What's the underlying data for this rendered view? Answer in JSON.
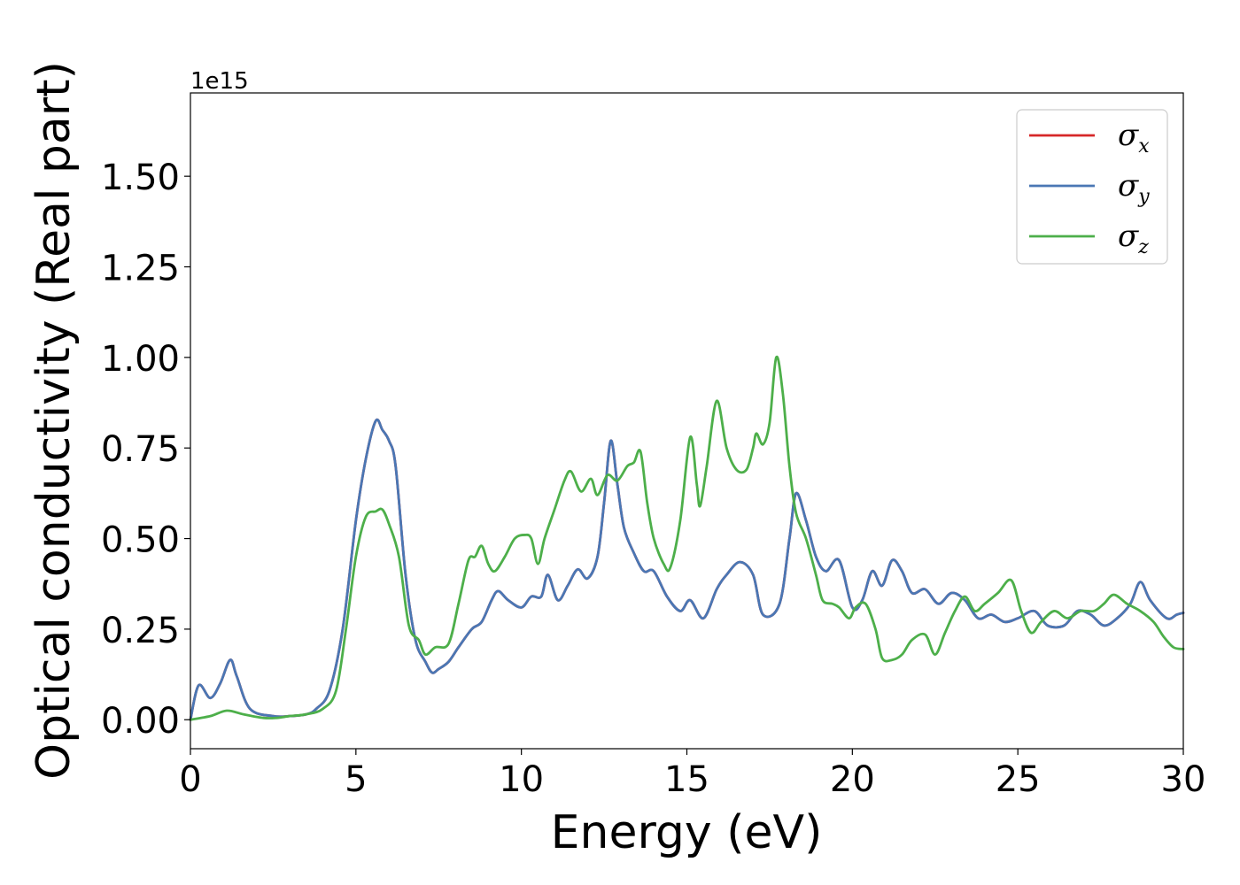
{
  "chart_data": {
    "type": "line",
    "xlabel": "Energy (eV)",
    "ylabel": "Optical conductivity (Real part)",
    "y_offset_label": "1e15",
    "xlim": [
      0,
      30
    ],
    "ylim": [
      -0.08,
      1.73
    ],
    "xticks": [
      0,
      5,
      10,
      15,
      20,
      25,
      30
    ],
    "xtick_labels": [
      "0",
      "5",
      "10",
      "15",
      "20",
      "25",
      "30"
    ],
    "yticks": [
      0.0,
      0.25,
      0.5,
      0.75,
      1.0,
      1.25,
      1.5
    ],
    "ytick_labels": [
      "0.00",
      "0.25",
      "0.50",
      "0.75",
      "1.00",
      "1.25",
      "1.50"
    ],
    "grid": false,
    "legend_position": "top-right",
    "series": [
      {
        "name": "σx",
        "symbol": "σ",
        "subscript": "x",
        "color": "#d62728",
        "points": [
          [
            0,
            0.0
          ],
          [
            0.25,
            0.095
          ],
          [
            0.6,
            0.06
          ],
          [
            0.9,
            0.1
          ],
          [
            1.2,
            0.165
          ],
          [
            1.4,
            0.12
          ],
          [
            1.8,
            0.03
          ],
          [
            2.5,
            0.01
          ],
          [
            3.0,
            0.01
          ],
          [
            3.5,
            0.015
          ],
          [
            3.8,
            0.03
          ],
          [
            4.2,
            0.08
          ],
          [
            4.6,
            0.25
          ],
          [
            5.0,
            0.55
          ],
          [
            5.3,
            0.72
          ],
          [
            5.6,
            0.825
          ],
          [
            5.8,
            0.8
          ],
          [
            6.0,
            0.77
          ],
          [
            6.2,
            0.7
          ],
          [
            6.5,
            0.4
          ],
          [
            6.8,
            0.22
          ],
          [
            7.1,
            0.16
          ],
          [
            7.3,
            0.13
          ],
          [
            7.5,
            0.14
          ],
          [
            7.8,
            0.16
          ],
          [
            8.1,
            0.2
          ],
          [
            8.5,
            0.25
          ],
          [
            8.8,
            0.27
          ],
          [
            9.1,
            0.33
          ],
          [
            9.3,
            0.355
          ],
          [
            9.6,
            0.33
          ],
          [
            10.0,
            0.31
          ],
          [
            10.3,
            0.34
          ],
          [
            10.6,
            0.34
          ],
          [
            10.8,
            0.4
          ],
          [
            11.1,
            0.33
          ],
          [
            11.4,
            0.37
          ],
          [
            11.7,
            0.415
          ],
          [
            12.0,
            0.39
          ],
          [
            12.3,
            0.45
          ],
          [
            12.5,
            0.6
          ],
          [
            12.7,
            0.77
          ],
          [
            12.9,
            0.65
          ],
          [
            13.1,
            0.53
          ],
          [
            13.4,
            0.46
          ],
          [
            13.7,
            0.41
          ],
          [
            14.0,
            0.41
          ],
          [
            14.4,
            0.34
          ],
          [
            14.8,
            0.3
          ],
          [
            15.1,
            0.33
          ],
          [
            15.5,
            0.28
          ],
          [
            15.9,
            0.36
          ],
          [
            16.2,
            0.4
          ],
          [
            16.6,
            0.435
          ],
          [
            17.0,
            0.4
          ],
          [
            17.3,
            0.29
          ],
          [
            17.8,
            0.32
          ],
          [
            18.1,
            0.5
          ],
          [
            18.3,
            0.625
          ],
          [
            18.6,
            0.55
          ],
          [
            18.9,
            0.45
          ],
          [
            19.2,
            0.41
          ],
          [
            19.6,
            0.44
          ],
          [
            20.0,
            0.31
          ],
          [
            20.3,
            0.33
          ],
          [
            20.6,
            0.41
          ],
          [
            20.9,
            0.37
          ],
          [
            21.2,
            0.44
          ],
          [
            21.5,
            0.41
          ],
          [
            21.8,
            0.35
          ],
          [
            22.2,
            0.36
          ],
          [
            22.6,
            0.32
          ],
          [
            23.0,
            0.35
          ],
          [
            23.4,
            0.33
          ],
          [
            23.8,
            0.28
          ],
          [
            24.2,
            0.29
          ],
          [
            24.6,
            0.27
          ],
          [
            25.0,
            0.28
          ],
          [
            25.5,
            0.3
          ],
          [
            25.9,
            0.26
          ],
          [
            26.4,
            0.26
          ],
          [
            26.8,
            0.3
          ],
          [
            27.2,
            0.29
          ],
          [
            27.6,
            0.26
          ],
          [
            28.0,
            0.28
          ],
          [
            28.4,
            0.32
          ],
          [
            28.7,
            0.38
          ],
          [
            29.0,
            0.33
          ],
          [
            29.5,
            0.28
          ],
          [
            29.8,
            0.29
          ],
          [
            30,
            0.295
          ]
        ]
      },
      {
        "name": "σy",
        "symbol": "σ",
        "subscript": "y",
        "color": "#4a77b4",
        "points": [
          [
            0,
            0.0
          ],
          [
            0.25,
            0.095
          ],
          [
            0.6,
            0.06
          ],
          [
            0.9,
            0.1
          ],
          [
            1.2,
            0.165
          ],
          [
            1.4,
            0.12
          ],
          [
            1.8,
            0.03
          ],
          [
            2.5,
            0.01
          ],
          [
            3.0,
            0.01
          ],
          [
            3.5,
            0.015
          ],
          [
            3.8,
            0.03
          ],
          [
            4.2,
            0.08
          ],
          [
            4.6,
            0.25
          ],
          [
            5.0,
            0.55
          ],
          [
            5.3,
            0.72
          ],
          [
            5.6,
            0.825
          ],
          [
            5.8,
            0.8
          ],
          [
            6.0,
            0.77
          ],
          [
            6.2,
            0.7
          ],
          [
            6.5,
            0.4
          ],
          [
            6.8,
            0.22
          ],
          [
            7.1,
            0.16
          ],
          [
            7.3,
            0.13
          ],
          [
            7.5,
            0.14
          ],
          [
            7.8,
            0.16
          ],
          [
            8.1,
            0.2
          ],
          [
            8.5,
            0.25
          ],
          [
            8.8,
            0.27
          ],
          [
            9.1,
            0.33
          ],
          [
            9.3,
            0.355
          ],
          [
            9.6,
            0.33
          ],
          [
            10.0,
            0.31
          ],
          [
            10.3,
            0.34
          ],
          [
            10.6,
            0.34
          ],
          [
            10.8,
            0.4
          ],
          [
            11.1,
            0.33
          ],
          [
            11.4,
            0.37
          ],
          [
            11.7,
            0.415
          ],
          [
            12.0,
            0.39
          ],
          [
            12.3,
            0.45
          ],
          [
            12.5,
            0.6
          ],
          [
            12.7,
            0.77
          ],
          [
            12.9,
            0.65
          ],
          [
            13.1,
            0.53
          ],
          [
            13.4,
            0.46
          ],
          [
            13.7,
            0.41
          ],
          [
            14.0,
            0.41
          ],
          [
            14.4,
            0.34
          ],
          [
            14.8,
            0.3
          ],
          [
            15.1,
            0.33
          ],
          [
            15.5,
            0.28
          ],
          [
            15.9,
            0.36
          ],
          [
            16.2,
            0.4
          ],
          [
            16.6,
            0.435
          ],
          [
            17.0,
            0.4
          ],
          [
            17.3,
            0.29
          ],
          [
            17.8,
            0.32
          ],
          [
            18.1,
            0.5
          ],
          [
            18.3,
            0.625
          ],
          [
            18.6,
            0.55
          ],
          [
            18.9,
            0.45
          ],
          [
            19.2,
            0.41
          ],
          [
            19.6,
            0.44
          ],
          [
            20.0,
            0.31
          ],
          [
            20.3,
            0.33
          ],
          [
            20.6,
            0.41
          ],
          [
            20.9,
            0.37
          ],
          [
            21.2,
            0.44
          ],
          [
            21.5,
            0.41
          ],
          [
            21.8,
            0.35
          ],
          [
            22.2,
            0.36
          ],
          [
            22.6,
            0.32
          ],
          [
            23.0,
            0.35
          ],
          [
            23.4,
            0.33
          ],
          [
            23.8,
            0.28
          ],
          [
            24.2,
            0.29
          ],
          [
            24.6,
            0.27
          ],
          [
            25.0,
            0.28
          ],
          [
            25.5,
            0.3
          ],
          [
            25.9,
            0.26
          ],
          [
            26.4,
            0.26
          ],
          [
            26.8,
            0.3
          ],
          [
            27.2,
            0.29
          ],
          [
            27.6,
            0.26
          ],
          [
            28.0,
            0.28
          ],
          [
            28.4,
            0.32
          ],
          [
            28.7,
            0.38
          ],
          [
            29.0,
            0.33
          ],
          [
            29.5,
            0.28
          ],
          [
            29.8,
            0.29
          ],
          [
            30,
            0.295
          ]
        ]
      },
      {
        "name": "σz",
        "symbol": "σ",
        "subscript": "z",
        "color": "#4daf4a",
        "points": [
          [
            0,
            0.0
          ],
          [
            0.6,
            0.01
          ],
          [
            1.1,
            0.025
          ],
          [
            1.6,
            0.015
          ],
          [
            2.2,
            0.005
          ],
          [
            2.6,
            0.005
          ],
          [
            3.0,
            0.01
          ],
          [
            3.5,
            0.015
          ],
          [
            4.0,
            0.03
          ],
          [
            4.4,
            0.08
          ],
          [
            4.7,
            0.25
          ],
          [
            5.0,
            0.45
          ],
          [
            5.3,
            0.56
          ],
          [
            5.6,
            0.575
          ],
          [
            5.8,
            0.58
          ],
          [
            6.0,
            0.54
          ],
          [
            6.3,
            0.45
          ],
          [
            6.6,
            0.26
          ],
          [
            6.9,
            0.22
          ],
          [
            7.1,
            0.18
          ],
          [
            7.4,
            0.2
          ],
          [
            7.8,
            0.21
          ],
          [
            8.1,
            0.32
          ],
          [
            8.4,
            0.44
          ],
          [
            8.6,
            0.45
          ],
          [
            8.8,
            0.48
          ],
          [
            9.0,
            0.43
          ],
          [
            9.2,
            0.41
          ],
          [
            9.5,
            0.45
          ],
          [
            9.8,
            0.5
          ],
          [
            10.1,
            0.51
          ],
          [
            10.3,
            0.5
          ],
          [
            10.5,
            0.43
          ],
          [
            10.7,
            0.5
          ],
          [
            11.0,
            0.58
          ],
          [
            11.3,
            0.66
          ],
          [
            11.5,
            0.685
          ],
          [
            11.8,
            0.63
          ],
          [
            12.1,
            0.665
          ],
          [
            12.3,
            0.62
          ],
          [
            12.6,
            0.675
          ],
          [
            12.9,
            0.66
          ],
          [
            13.2,
            0.7
          ],
          [
            13.4,
            0.71
          ],
          [
            13.6,
            0.74
          ],
          [
            13.8,
            0.6
          ],
          [
            14.0,
            0.5
          ],
          [
            14.3,
            0.43
          ],
          [
            14.5,
            0.42
          ],
          [
            14.8,
            0.55
          ],
          [
            15.1,
            0.78
          ],
          [
            15.3,
            0.65
          ],
          [
            15.4,
            0.59
          ],
          [
            15.6,
            0.7
          ],
          [
            15.9,
            0.88
          ],
          [
            16.2,
            0.75
          ],
          [
            16.5,
            0.69
          ],
          [
            16.8,
            0.69
          ],
          [
            17.0,
            0.75
          ],
          [
            17.1,
            0.79
          ],
          [
            17.3,
            0.76
          ],
          [
            17.5,
            0.82
          ],
          [
            17.7,
            1.0
          ],
          [
            17.9,
            0.9
          ],
          [
            18.1,
            0.7
          ],
          [
            18.3,
            0.57
          ],
          [
            18.6,
            0.5
          ],
          [
            18.9,
            0.4
          ],
          [
            19.1,
            0.33
          ],
          [
            19.4,
            0.32
          ],
          [
            19.6,
            0.31
          ],
          [
            19.9,
            0.28
          ],
          [
            20.1,
            0.31
          ],
          [
            20.4,
            0.32
          ],
          [
            20.7,
            0.25
          ],
          [
            20.9,
            0.17
          ],
          [
            21.2,
            0.165
          ],
          [
            21.5,
            0.18
          ],
          [
            21.8,
            0.22
          ],
          [
            22.2,
            0.235
          ],
          [
            22.5,
            0.18
          ],
          [
            22.8,
            0.24
          ],
          [
            23.1,
            0.3
          ],
          [
            23.4,
            0.34
          ],
          [
            23.7,
            0.3
          ],
          [
            24.0,
            0.32
          ],
          [
            24.4,
            0.35
          ],
          [
            24.8,
            0.385
          ],
          [
            25.1,
            0.3
          ],
          [
            25.4,
            0.24
          ],
          [
            25.7,
            0.27
          ],
          [
            26.1,
            0.3
          ],
          [
            26.5,
            0.28
          ],
          [
            26.9,
            0.3
          ],
          [
            27.3,
            0.3
          ],
          [
            27.6,
            0.32
          ],
          [
            27.9,
            0.345
          ],
          [
            28.3,
            0.32
          ],
          [
            28.7,
            0.3
          ],
          [
            29.1,
            0.27
          ],
          [
            29.4,
            0.23
          ],
          [
            29.7,
            0.2
          ],
          [
            30,
            0.195
          ]
        ]
      }
    ]
  }
}
